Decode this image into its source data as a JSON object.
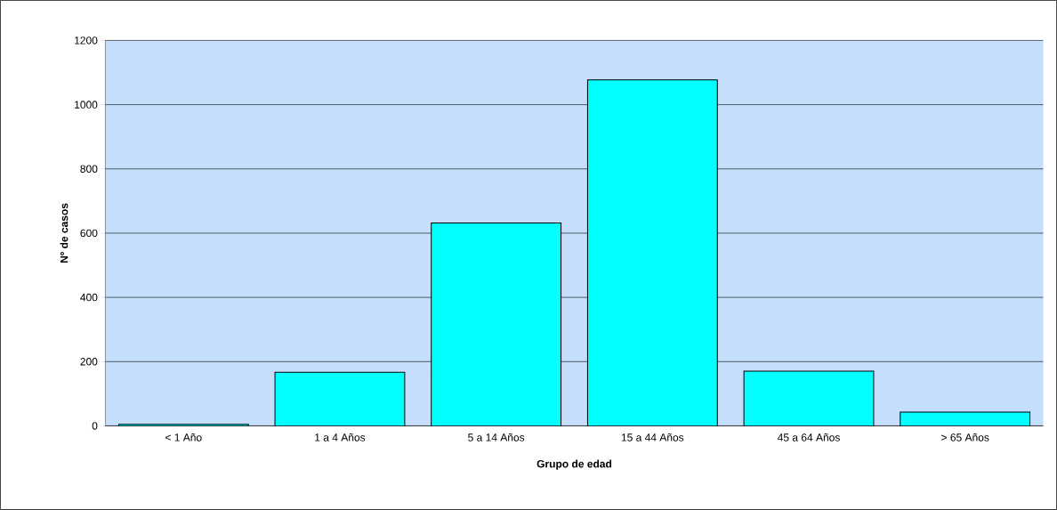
{
  "chart_data": {
    "type": "bar",
    "xlabel": "Grupo de edad",
    "ylabel": "Nº de casos",
    "categories": [
      "< 1 Año",
      "1 a 4 Años",
      "5 a 14 Años",
      "15 a 44 Años",
      "45 a 64 Años",
      "> 65 Años"
    ],
    "values": [
      5,
      167,
      632,
      1077,
      170,
      43
    ],
    "color": "#00ffff",
    "ylim": [
      0,
      1200
    ],
    "yticks": [
      0,
      200,
      400,
      600,
      800,
      1000,
      1200
    ],
    "grid": "y"
  }
}
